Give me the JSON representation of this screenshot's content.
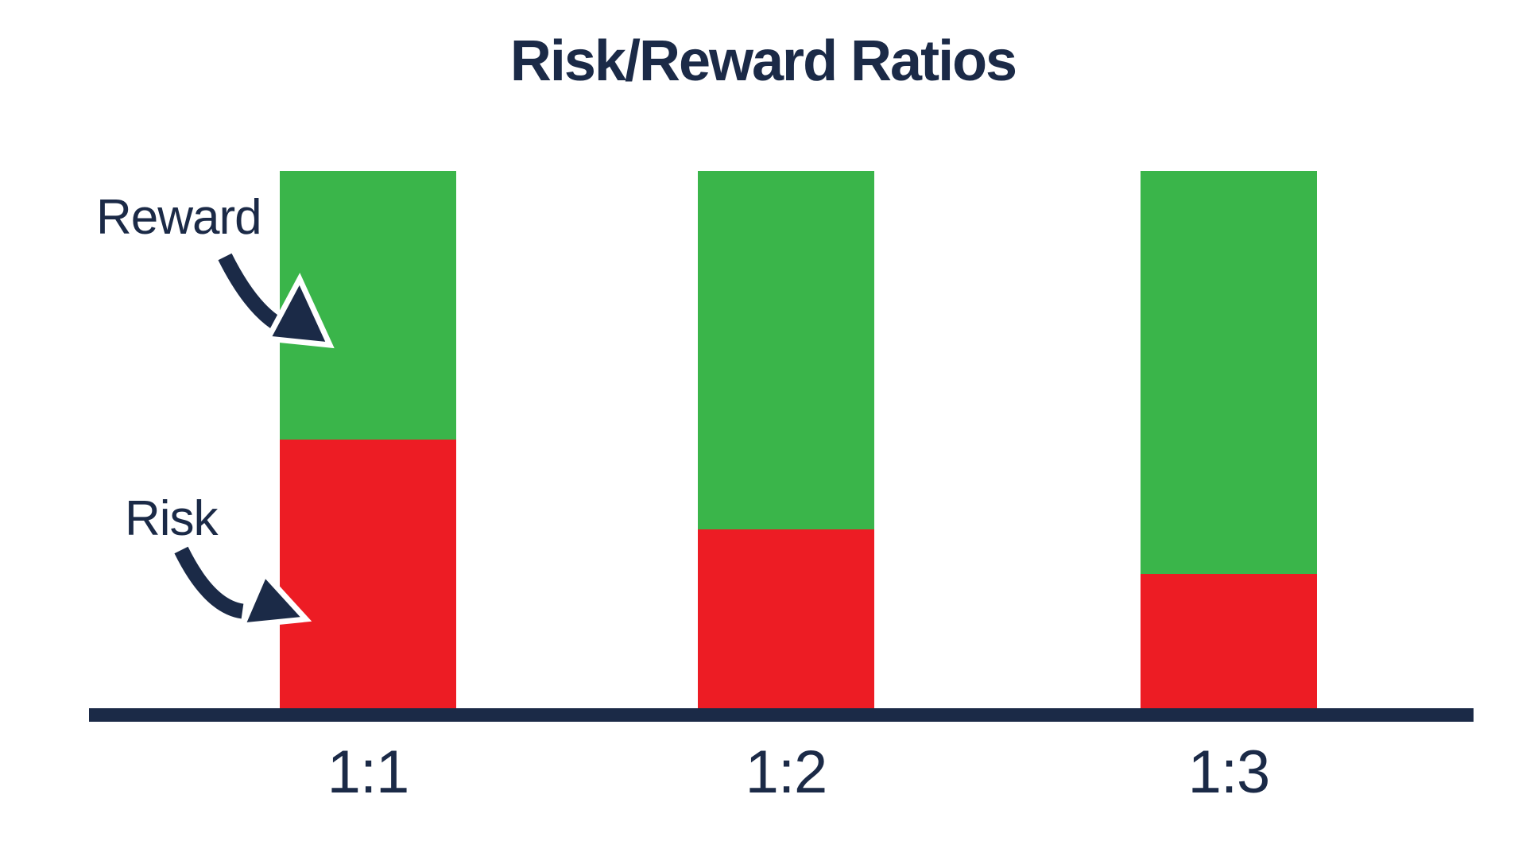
{
  "title": "Risk/Reward Ratios",
  "colors": {
    "navy": "#1b2a47",
    "green": "#3ab54a",
    "red": "#ed1c24",
    "background": "#ffffff"
  },
  "annotations": {
    "reward": {
      "label": "Reward",
      "points_to": "green segment of first bar"
    },
    "risk": {
      "label": "Risk",
      "points_to": "red segment of first bar"
    }
  },
  "icons": {
    "reward_arrow": "curved-arrow-down-right-icon",
    "risk_arrow": "curved-arrow-down-right-icon"
  },
  "chart_data": {
    "type": "bar",
    "subtype": "stacked-normalized",
    "title": "Risk/Reward Ratios",
    "categories": [
      "1:1",
      "1:2",
      "1:3"
    ],
    "series": [
      {
        "name": "Risk",
        "color": "#ed1c24",
        "values": [
          1,
          1,
          1
        ]
      },
      {
        "name": "Reward",
        "color": "#3ab54a",
        "values": [
          1,
          2,
          3
        ]
      }
    ],
    "risk_fraction_of_bar_drawn": [
      0.5,
      0.33,
      0.24
    ],
    "bars_equal_total_height": true,
    "xlabel": "",
    "ylabel": "",
    "y_axis_visible": false,
    "x_axis_line": true,
    "grid": false,
    "legend_position": "none (labeled via arrow annotations on first bar)"
  }
}
